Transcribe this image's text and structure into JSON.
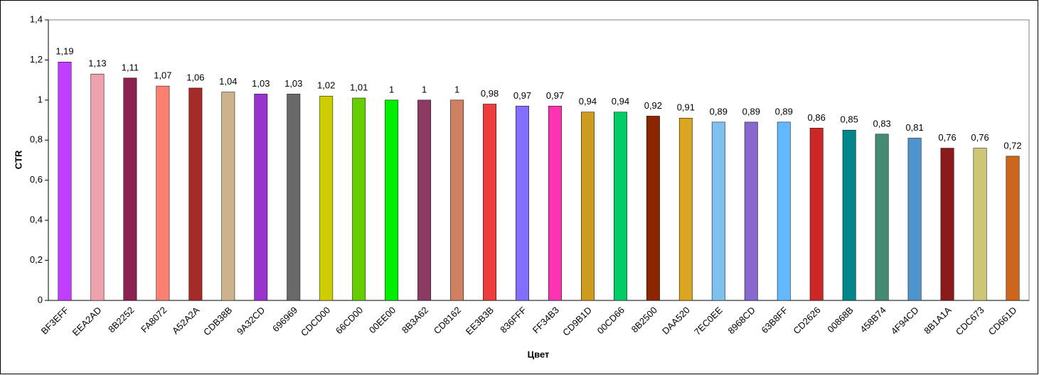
{
  "chart_data": {
    "type": "bar",
    "x_label": "Цвет",
    "y_label": "CTR",
    "categories": [
      "BF3EFF",
      "EEA2AD",
      "8B2252",
      "FA8072",
      "A52A2A",
      "CDB38B",
      "9A32CD",
      "696969",
      "CDCD00",
      "66CD00",
      "00EE00",
      "8B3A62",
      "CD8162",
      "EE3B3B",
      "836FFF",
      "FF34B3",
      "CD9B1D",
      "00CD66",
      "8B2500",
      "DAA520",
      "7EC0EE",
      "8968CD",
      "63B8FF",
      "CD2626",
      "00868B",
      "458B74",
      "4F94CD",
      "8B1A1A",
      "CDC673",
      "CD661D"
    ],
    "values": [
      1.19,
      1.13,
      1.11,
      1.07,
      1.06,
      1.04,
      1.03,
      1.03,
      1.02,
      1.01,
      1,
      1,
      1,
      0.98,
      0.97,
      0.97,
      0.94,
      0.94,
      0.92,
      0.91,
      0.89,
      0.89,
      0.89,
      0.86,
      0.85,
      0.83,
      0.81,
      0.76,
      0.76,
      0.72
    ],
    "value_labels": [
      "1,19",
      "1,13",
      "1,11",
      "1,07",
      "1,06",
      "1,04",
      "1,03",
      "1,03",
      "1,02",
      "1,01",
      "1",
      "1",
      "1",
      "0,98",
      "0,97",
      "0,97",
      "0,94",
      "0,94",
      "0,92",
      "0,91",
      "0,89",
      "0,89",
      "0,89",
      "0,86",
      "0,85",
      "0,83",
      "0,81",
      "0,76",
      "0,76",
      "0,72"
    ],
    "colors": [
      "#BF3EFF",
      "#EEA2AD",
      "#8B2252",
      "#FA8072",
      "#A52A2A",
      "#CDB38B",
      "#9A32CD",
      "#696969",
      "#CDCD00",
      "#66CD00",
      "#00EE00",
      "#8B3A62",
      "#CD8162",
      "#EE3B3B",
      "#836FFF",
      "#FF34B3",
      "#CD9B1D",
      "#00CD66",
      "#8B2500",
      "#DAA520",
      "#7EC0EE",
      "#8968CD",
      "#63B8FF",
      "#CD2626",
      "#00868B",
      "#458B74",
      "#4F94CD",
      "#8B1A1A",
      "#CDC673",
      "#CD661D"
    ],
    "ylim": [
      0,
      1.4
    ],
    "yticks": [
      0,
      {
        "value": 0.2,
        "label": "0,2"
      },
      {
        "value": 0.4,
        "label": "0,4"
      },
      {
        "value": 0.6,
        "label": "0,6"
      },
      {
        "value": 0.8,
        "label": "0,8"
      },
      1,
      {
        "value": 1.2,
        "label": "1,2"
      },
      {
        "value": 1.4,
        "label": "1,4"
      }
    ],
    "grid": false
  }
}
